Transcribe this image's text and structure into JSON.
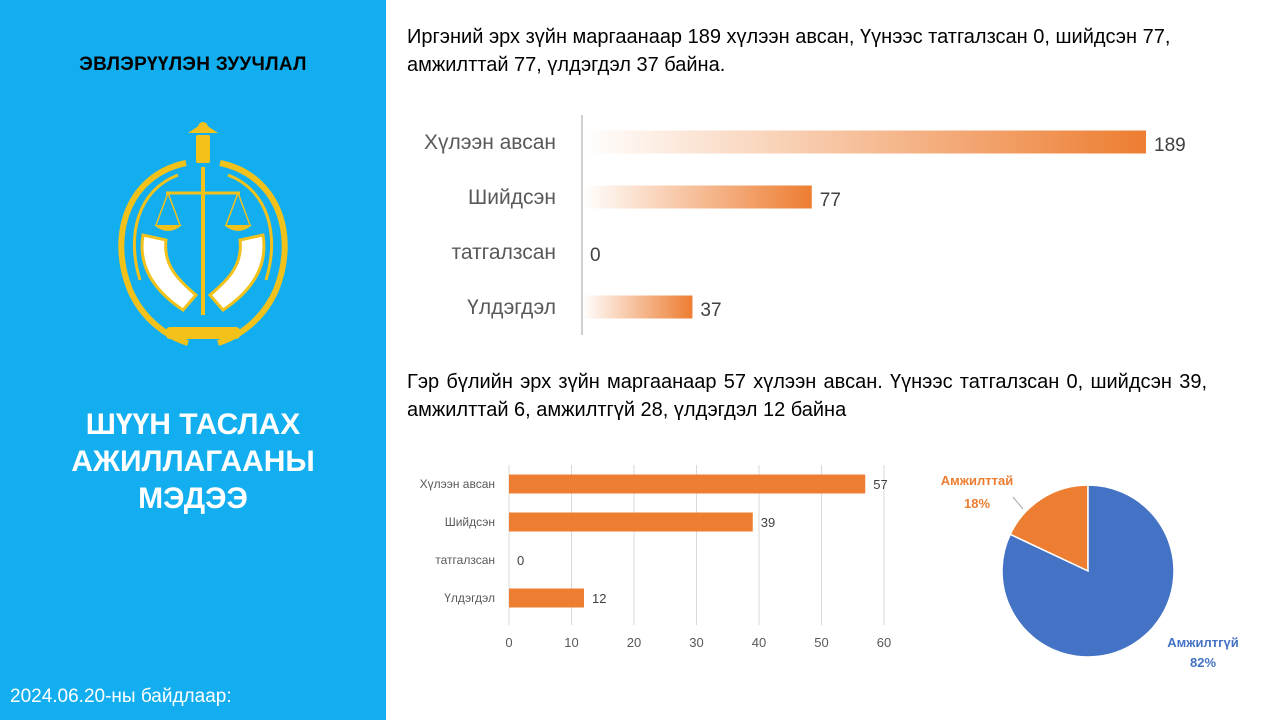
{
  "sidebar": {
    "org_name": "ЭВЛЭРҮҮЛЭН ЗУУЧЛАЛ",
    "title_lines": [
      "ШҮҮН ТАСЛАХ",
      "АЖИЛЛАГААНЫ",
      "МЭДЭЭ"
    ],
    "date_note": "2024.06.20-ны байдлаар:"
  },
  "text": {
    "civil_summary": "Иргэний эрх зүйн маргаанаар 189 хүлээн авсан, Үүнээс татгалзсан 0, шийдсэн 77, амжилттай 77, үлдэгдэл 37 байна.",
    "family_summary": " Гэр бүлийн эрх зүйн маргаанаар 57 хүлээн авсан. Үүнээс татгалзсан 0, шийдсэн 39, амжилттай 6, амжилтгүй 28, үлдэгдэл 12 байна"
  },
  "colors": {
    "sidebar": "#13aeef",
    "orange": "#ed7d31",
    "blue": "#4472c4",
    "emblem_gold": "#f2c21b"
  },
  "chart_data": [
    {
      "type": "bar",
      "orientation": "horizontal",
      "categories": [
        "Хүлээн авсан",
        "Шийдсэн",
        "татгалзсан",
        "Үлдэгдэл"
      ],
      "values": [
        189,
        77,
        0,
        37
      ],
      "xlim": [
        0,
        189
      ],
      "data_labels": true,
      "fill": "gradient orange",
      "grid": false
    },
    {
      "type": "bar",
      "orientation": "horizontal",
      "categories": [
        "Хүлээн авсан",
        "Шийдсэн",
        "татгалзсан",
        "Үлдэгдэл"
      ],
      "values": [
        57,
        39,
        0,
        12
      ],
      "xlim": [
        0,
        60
      ],
      "xticks": [
        "0",
        "10",
        "20",
        "30",
        "40",
        "50",
        "60"
      ],
      "data_labels": true,
      "grid": true
    },
    {
      "type": "pie",
      "labels": [
        "Амжилттай",
        "Амжилтгүй"
      ],
      "values": [
        18,
        82
      ],
      "value_labels": [
        "18%",
        "82%"
      ],
      "colors": [
        "#ed7d31",
        "#4472c4"
      ]
    }
  ]
}
